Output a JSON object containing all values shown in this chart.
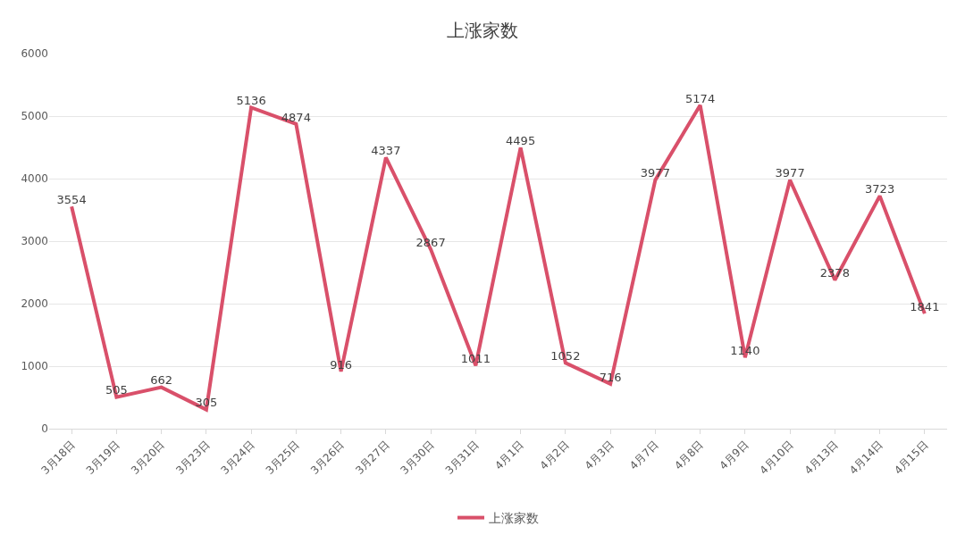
{
  "chart_data": {
    "type": "line",
    "title": "上涨家数",
    "categories": [
      "3月18日",
      "3月19日",
      "3月20日",
      "3月23日",
      "3月24日",
      "3月25日",
      "3月26日",
      "3月27日",
      "3月30日",
      "3月31日",
      "4月1日",
      "4月2日",
      "4月3日",
      "4月7日",
      "4月8日",
      "4月9日",
      "4月10日",
      "4月13日",
      "4月14日",
      "4月15日"
    ],
    "series": [
      {
        "name": "上涨家数",
        "color": "#d9506a",
        "values": [
          3554,
          505,
          662,
          305,
          5136,
          4874,
          916,
          4337,
          2867,
          1011,
          4495,
          1052,
          716,
          3977,
          5174,
          1140,
          3977,
          2378,
          3723,
          1841
        ]
      }
    ],
    "ylim": [
      0,
      6000
    ],
    "yticks": [
      0,
      1000,
      2000,
      3000,
      4000,
      5000,
      6000
    ],
    "grid": "y",
    "legend": "bottom",
    "data_labels": true,
    "marker": "none",
    "line_style": "solid"
  }
}
